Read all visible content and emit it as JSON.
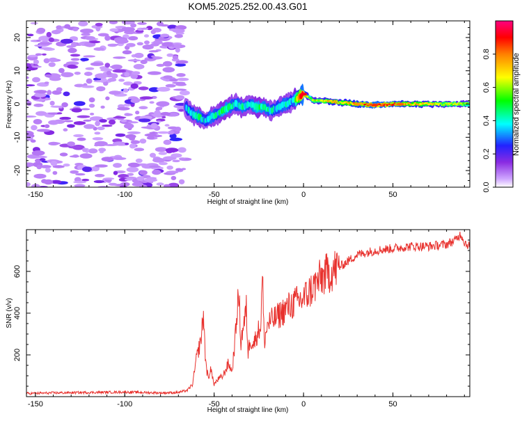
{
  "chart_data": [
    {
      "type": "heatmap",
      "title": "KOM5.2025.252.00.43.G01",
      "xlabel": "Height of straight line (km)",
      "ylabel": "Frequency (Hz)",
      "xlim": [
        -155,
        93
      ],
      "ylim": [
        -25,
        25
      ],
      "xticks": [
        -150,
        -100,
        -50,
        0,
        50
      ],
      "xtick_labels": [
        "-150",
        "-100",
        "-50",
        "0",
        "50"
      ],
      "yticks": [
        -20,
        -10,
        0,
        10,
        20
      ],
      "ytick_labels": [
        "-20",
        "-10",
        "0",
        "10",
        "20"
      ],
      "grid": false,
      "colorbar": {
        "label": "Normalized spectral amplitude",
        "range": [
          0,
          1
        ],
        "ticks": [
          0.0,
          0.2,
          0.4,
          0.6,
          0.8
        ],
        "tick_labels": [
          "0.0",
          "0.2",
          "0.4",
          "0.6",
          "0.8"
        ],
        "colors": [
          "#ffffff",
          "#cfa6ff",
          "#8a2be2",
          "#2222ff",
          "#00ffff",
          "#00ff00",
          "#ffff00",
          "#ff8000",
          "#ff0000",
          "#ff0080"
        ]
      },
      "noise_region_x": [
        -155,
        -66
      ],
      "ridge": {
        "x": [
          -66,
          -62,
          -58,
          -55,
          -52,
          -48,
          -45,
          -42,
          -38,
          -34,
          -30,
          -26,
          -22,
          -18,
          -14,
          -10,
          -6,
          -3,
          0,
          3,
          6,
          10,
          15,
          20,
          25,
          30,
          40,
          50,
          60,
          70,
          80,
          93
        ],
        "frequency": [
          -1,
          -3,
          -4,
          -5,
          -4,
          -3,
          -2,
          -1,
          0,
          -1,
          0,
          -1,
          -1,
          -2,
          -1,
          0,
          1,
          2,
          3,
          2,
          1,
          1,
          0.8,
          0.5,
          0.3,
          0,
          -0.3,
          0,
          0,
          0,
          0,
          0
        ],
        "amplitude": [
          0.3,
          0.35,
          0.4,
          0.3,
          0.4,
          0.35,
          0.45,
          0.4,
          0.35,
          0.4,
          0.35,
          0.45,
          0.4,
          0.35,
          0.35,
          0.4,
          0.3,
          0.7,
          0.9,
          0.5,
          0.6,
          0.6,
          0.7,
          0.65,
          0.7,
          0.75,
          0.85,
          0.8,
          0.7,
          0.65,
          0.6,
          0.55
        ]
      }
    },
    {
      "type": "line",
      "title": "",
      "xlabel": "Height of straight line (km)",
      "ylabel": "SNR (v/v)",
      "xlim": [
        -155,
        93
      ],
      "ylim": [
        0,
        800
      ],
      "xticks": [
        -150,
        -100,
        -50,
        0,
        50
      ],
      "xtick_labels": [
        "-150",
        "-100",
        "-50",
        "0",
        "50"
      ],
      "yticks": [
        200,
        400,
        600
      ],
      "ytick_labels": [
        "200",
        "400",
        "600"
      ],
      "grid": false,
      "line_color": "#e8312d",
      "series": [
        {
          "name": "SNR",
          "x": [
            -155,
            -140,
            -120,
            -100,
            -80,
            -70,
            -65,
            -62,
            -60,
            -58,
            -57,
            -56,
            -55,
            -54,
            -53,
            -52,
            -51,
            -50,
            -48,
            -45,
            -42,
            -40,
            -38,
            -37,
            -36,
            -35,
            -34,
            -33,
            -32,
            -31,
            -30,
            -28,
            -26,
            -24,
            -23,
            -22,
            -20,
            -15,
            -10,
            -5,
            0,
            5,
            10,
            15,
            20,
            25,
            30,
            40,
            50,
            60,
            70,
            80,
            85,
            88,
            90,
            93
          ],
          "values": [
            15,
            18,
            20,
            22,
            18,
            20,
            30,
            60,
            180,
            250,
            300,
            400,
            200,
            120,
            80,
            150,
            90,
            60,
            80,
            100,
            160,
            120,
            300,
            440,
            470,
            250,
            330,
            360,
            420,
            200,
            280,
            250,
            300,
            340,
            580,
            260,
            350,
            380,
            420,
            450,
            470,
            520,
            570,
            600,
            620,
            650,
            680,
            700,
            710,
            720,
            720,
            730,
            750,
            780,
            740,
            720
          ]
        }
      ]
    }
  ]
}
